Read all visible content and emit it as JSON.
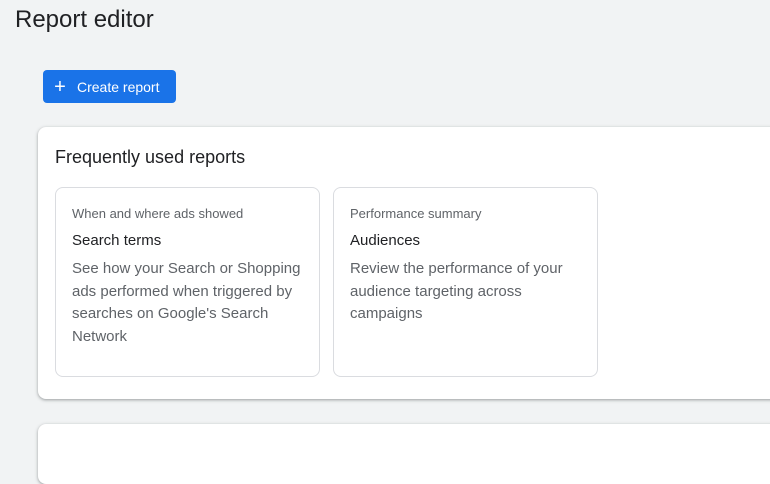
{
  "page": {
    "title": "Report editor"
  },
  "toolbar": {
    "create_label": "Create report",
    "create_icon": "plus-icon"
  },
  "frequent": {
    "heading": "Frequently used reports",
    "tiles": [
      {
        "category": "When and where ads showed",
        "title": "Search terms",
        "description": "See how your Search or Shopping ads performed when triggered by searches on Google's Search Network"
      },
      {
        "category": "Performance summary",
        "title": "Audiences",
        "description": "Review the performance of your audience targeting across campaigns"
      }
    ]
  },
  "colors": {
    "accent": "#1a73e8",
    "background": "#f1f3f4"
  }
}
